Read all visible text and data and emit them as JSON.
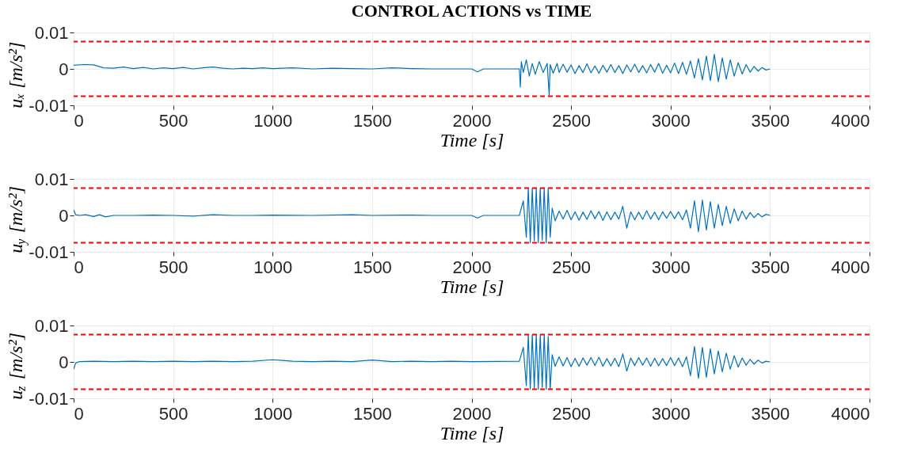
{
  "chart_data": [
    {
      "type": "line",
      "title": "CONTROL ACTIONS vs TIME",
      "xlabel": "Time [s]",
      "ylabel": "uₓ [m/s²]",
      "xlim": [
        0,
        4000
      ],
      "xticks": [
        0,
        500,
        1000,
        1500,
        2000,
        2500,
        3000,
        3500,
        4000
      ],
      "ylim": [
        -0.01,
        0.01
      ],
      "yticks": [
        -0.01,
        0,
        0.01
      ],
      "grid": true,
      "line_style": "solid",
      "ref_lines": [
        {
          "axis": "y",
          "value": 0.0075,
          "color": "#ff0000",
          "line_style": "dashed"
        },
        {
          "axis": "y",
          "value": -0.0075,
          "color": "#ff0000",
          "line_style": "dashed"
        }
      ],
      "series": [
        {
          "color": "#0072bd",
          "x": [
            0,
            50,
            100,
            150,
            200,
            250,
            300,
            350,
            400,
            450,
            500,
            550,
            600,
            650,
            700,
            750,
            800,
            850,
            900,
            950,
            1000,
            1100,
            1200,
            1300,
            1400,
            1500,
            1600,
            1700,
            1800,
            1900,
            2000,
            2030,
            2060,
            2100,
            2200,
            2240,
            2245,
            2250,
            2260,
            2275,
            2290,
            2305,
            2320,
            2340,
            2360,
            2380,
            2390,
            2395,
            2410,
            2430,
            2440,
            2460,
            2480,
            2500,
            2520,
            2540,
            2560,
            2580,
            2600,
            2620,
            2640,
            2660,
            2680,
            2700,
            2720,
            2740,
            2760,
            2780,
            2800,
            2820,
            2840,
            2860,
            2880,
            2900,
            2920,
            2940,
            2960,
            2980,
            3000,
            3020,
            3040,
            3060,
            3080,
            3100,
            3120,
            3140,
            3160,
            3180,
            3200,
            3220,
            3240,
            3260,
            3280,
            3300,
            3320,
            3340,
            3360,
            3380,
            3400,
            3420,
            3440,
            3460,
            3480,
            3500
          ],
          "values": [
            0.001,
            0.0012,
            0.0011,
            0.0003,
            0.0002,
            0.0005,
            0.0001,
            0.0004,
            0,
            0.0003,
            0.0001,
            0.0004,
            0,
            0.0003,
            0.0005,
            0.0002,
            0,
            0.0002,
            0.0001,
            0.0003,
            0.0001,
            0.0003,
            0,
            0.0002,
            0.0001,
            0,
            0.0003,
            0.0001,
            0,
            0,
            0,
            -0.0008,
            0,
            0,
            0,
            0,
            -0.005,
            0.002,
            -0.001,
            0.0025,
            -0.002,
            0.0015,
            -0.0015,
            0.002,
            -0.001,
            0.0015,
            -0.0072,
            0.0012,
            -0.0012,
            0.0015,
            -0.001,
            0.0013,
            -0.0009,
            0.0011,
            -0.0013,
            0.0009,
            -0.001,
            0.0014,
            -0.0011,
            0.0008,
            -0.0012,
            0.001,
            -0.0009,
            0.0012,
            -0.001,
            0.0009,
            -0.0013,
            0.0011,
            -0.0008,
            0.0013,
            -0.001,
            0.0009,
            -0.0011,
            0.0012,
            -0.0009,
            0.0015,
            -0.0012,
            0.001,
            -0.0011,
            0.0016,
            -0.0013,
            0.0018,
            -0.0015,
            0.0022,
            -0.0025,
            0.0028,
            -0.003,
            0.0035,
            -0.0032,
            0.004,
            -0.0035,
            0.003,
            -0.0028,
            0.0025,
            -0.002,
            0.0017,
            -0.0014,
            0.0012,
            -0.0009,
            0.0007,
            -0.0006,
            0.0004,
            -0.0003,
            0
          ]
        }
      ]
    },
    {
      "type": "line",
      "xlabel": "Time [s]",
      "ylabel": "u$_{y}$ [m/s²]",
      "xlim": [
        0,
        4000
      ],
      "xticks": [
        0,
        500,
        1000,
        1500,
        2000,
        2500,
        3000,
        3500,
        4000
      ],
      "ylim": [
        -0.01,
        0.01
      ],
      "yticks": [
        -0.01,
        0,
        0.01
      ],
      "grid": true,
      "line_style": "solid",
      "ref_lines": [
        {
          "axis": "y",
          "value": 0.0075,
          "color": "#ff0000",
          "line_style": "dashed"
        },
        {
          "axis": "y",
          "value": -0.0075,
          "color": "#ff0000",
          "line_style": "dashed"
        }
      ],
      "series": [
        {
          "color": "#0072bd",
          "x": [
            0,
            10,
            30,
            60,
            100,
            130,
            160,
            200,
            300,
            400,
            500,
            600,
            700,
            800,
            900,
            1000,
            1200,
            1400,
            1500,
            1700,
            1800,
            2000,
            2030,
            2060,
            2240,
            2260,
            2275,
            2285,
            2295,
            2305,
            2315,
            2325,
            2335,
            2345,
            2355,
            2365,
            2375,
            2385,
            2395,
            2405,
            2420,
            2440,
            2460,
            2480,
            2500,
            2520,
            2540,
            2560,
            2580,
            2600,
            2620,
            2640,
            2660,
            2680,
            2700,
            2720,
            2740,
            2760,
            2780,
            2800,
            2820,
            2840,
            2860,
            2880,
            2900,
            2920,
            2940,
            2960,
            2980,
            3000,
            3020,
            3040,
            3060,
            3080,
            3100,
            3120,
            3140,
            3160,
            3180,
            3200,
            3220,
            3240,
            3260,
            3280,
            3300,
            3320,
            3340,
            3360,
            3380,
            3400,
            3420,
            3440,
            3460,
            3480,
            3500
          ],
          "values": [
            0.0015,
            0.0002,
            0,
            0.0002,
            -0.0003,
            0.0002,
            -0.0004,
            0,
            0,
            0.0001,
            0,
            -0.0002,
            0.0002,
            0,
            0,
            0.0001,
            0,
            0.0002,
            0,
            0.0001,
            0,
            0,
            -0.0007,
            0,
            0,
            0.004,
            -0.006,
            0.0075,
            -0.0075,
            0.0075,
            -0.007,
            0.0073,
            -0.0075,
            0.0075,
            -0.0068,
            0.0075,
            -0.0075,
            0.0075,
            -0.006,
            0.002,
            -0.0015,
            0.0012,
            -0.001,
            0.0014,
            -0.0012,
            0.001,
            -0.0013,
            0.0009,
            -0.0011,
            0.0013,
            -0.0009,
            0.0011,
            -0.0014,
            0.001,
            -0.0012,
            0.0009,
            -0.001,
            0.0025,
            -0.0035,
            0.001,
            -0.0012,
            0.0009,
            -0.0011,
            0.0013,
            -0.001,
            0.0009,
            -0.0012,
            0.001,
            -0.0008,
            0.0011,
            -0.0009,
            0.001,
            -0.0012,
            0.0015,
            -0.0035,
            0.004,
            -0.0045,
            0.0042,
            -0.004,
            0.0038,
            -0.0035,
            0.003,
            -0.0028,
            0.0025,
            -0.0022,
            0.0018,
            -0.0015,
            0.0012,
            -0.001,
            0.0008,
            -0.0006,
            0.0005,
            -0.0004,
            0.0003,
            0
          ]
        }
      ]
    },
    {
      "type": "line",
      "xlabel": "Time [s]",
      "ylabel": "u$_{z}$ [m/s²]",
      "xlim": [
        0,
        4000
      ],
      "xticks": [
        0,
        500,
        1000,
        1500,
        2000,
        2500,
        3000,
        3500,
        4000
      ],
      "ylim": [
        -0.01,
        0.01
      ],
      "yticks": [
        -0.01,
        0,
        0.01
      ],
      "grid": true,
      "line_style": "solid",
      "ref_lines": [
        {
          "axis": "y",
          "value": 0.0075,
          "color": "#ff0000",
          "line_style": "dashed"
        },
        {
          "axis": "y",
          "value": -0.0075,
          "color": "#ff0000",
          "line_style": "dashed"
        }
      ],
      "series": [
        {
          "color": "#0072bd",
          "x": [
            0,
            10,
            30,
            100,
            200,
            300,
            400,
            500,
            600,
            700,
            800,
            900,
            1000,
            1050,
            1100,
            1200,
            1300,
            1400,
            1500,
            1550,
            1600,
            1700,
            1800,
            1900,
            2000,
            2240,
            2260,
            2275,
            2285,
            2295,
            2305,
            2315,
            2325,
            2335,
            2345,
            2355,
            2365,
            2375,
            2385,
            2395,
            2405,
            2420,
            2440,
            2460,
            2480,
            2500,
            2520,
            2540,
            2560,
            2580,
            2600,
            2620,
            2640,
            2660,
            2680,
            2700,
            2720,
            2740,
            2760,
            2780,
            2800,
            2820,
            2840,
            2860,
            2880,
            2900,
            2920,
            2940,
            2960,
            2980,
            3000,
            3020,
            3040,
            3060,
            3080,
            3100,
            3120,
            3140,
            3160,
            3180,
            3200,
            3220,
            3240,
            3260,
            3280,
            3300,
            3320,
            3340,
            3360,
            3380,
            3400,
            3420,
            3440,
            3460,
            3480,
            3500
          ],
          "values": [
            -0.002,
            -0.0003,
            0.0001,
            0.0002,
            0.0001,
            0.0002,
            0.0001,
            0.0002,
            0.0001,
            0.0002,
            0.0001,
            0.0002,
            0.0006,
            0.0004,
            0.0002,
            0.0001,
            0.0002,
            0.0001,
            0.0005,
            0.0003,
            0.0001,
            0.0002,
            0.0001,
            0.0002,
            0.0001,
            0.0002,
            0.004,
            -0.0065,
            0.0075,
            -0.0075,
            0.0075,
            -0.0072,
            0.0075,
            -0.0075,
            0.0075,
            -0.007,
            0.0075,
            -0.0075,
            0.007,
            -0.0075,
            0.002,
            -0.0012,
            0.0014,
            -0.0011,
            0.0012,
            -0.0013,
            0.001,
            -0.0012,
            0.0011,
            -0.0009,
            0.0012,
            -0.001,
            0.0013,
            -0.0012,
            0.0009,
            -0.0011,
            0.001,
            -0.0013,
            0.0022,
            -0.0025,
            0.0011,
            -0.001,
            0.0012,
            -0.0009,
            0.0011,
            -0.0012,
            0.001,
            -0.0011,
            0.0009,
            -0.001,
            0.0012,
            -0.001,
            0.0011,
            -0.0013,
            0.0014,
            -0.0038,
            0.0042,
            -0.0045,
            0.004,
            -0.0042,
            0.0036,
            -0.0033,
            0.003,
            -0.0027,
            0.0024,
            -0.002,
            0.0017,
            -0.0014,
            0.0011,
            -0.0009,
            0.0007,
            -0.0006,
            0.0005,
            -0.0003,
            0.0002,
            0
          ]
        }
      ]
    }
  ]
}
